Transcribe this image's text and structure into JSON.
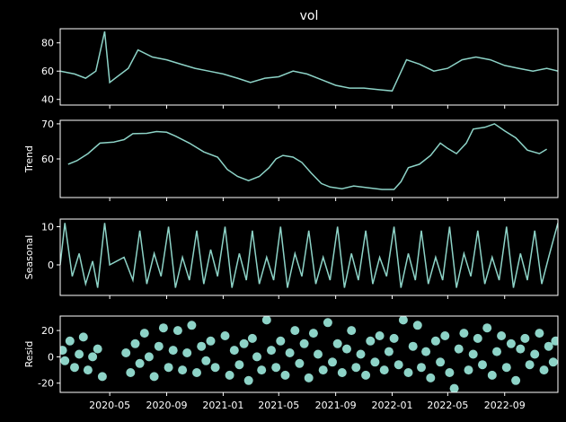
{
  "chart_data": {
    "type": "line",
    "title": "vol",
    "x_tick_labels": [
      "2020-05",
      "2020-09",
      "2021-01",
      "2021-05",
      "2021-09",
      "2022-01",
      "2022-05",
      "2022-09"
    ],
    "x_range": [
      "2020-01-15",
      "2022-12-25"
    ],
    "series_color": "#8dd3c7",
    "panels": [
      {
        "id": "observed",
        "ylabel": "",
        "ylim": [
          36,
          90
        ],
        "yticks": [
          40,
          60,
          80
        ],
        "kind": "line",
        "data_points": [
          [
            "2020-01-15",
            60
          ],
          [
            "2020-02-15",
            58
          ],
          [
            "2020-03-10",
            55
          ],
          [
            "2020-04-01",
            60
          ],
          [
            "2020-04-20",
            88
          ],
          [
            "2020-05-01",
            52
          ],
          [
            "2020-06-10",
            62
          ],
          [
            "2020-07-01",
            75
          ],
          [
            "2020-08-01",
            70
          ],
          [
            "2020-09-01",
            68
          ],
          [
            "2020-10-01",
            65
          ],
          [
            "2020-11-01",
            62
          ],
          [
            "2020-12-01",
            60
          ],
          [
            "2021-01-01",
            58
          ],
          [
            "2021-02-01",
            55
          ],
          [
            "2021-03-01",
            52
          ],
          [
            "2021-04-01",
            55
          ],
          [
            "2021-05-01",
            56
          ],
          [
            "2021-06-01",
            60
          ],
          [
            "2021-07-01",
            58
          ],
          [
            "2021-08-01",
            54
          ],
          [
            "2021-09-01",
            50
          ],
          [
            "2021-10-01",
            48
          ],
          [
            "2021-11-01",
            48
          ],
          [
            "2021-12-01",
            47
          ],
          [
            "2022-01-01",
            46
          ],
          [
            "2022-02-01",
            68
          ],
          [
            "2022-03-01",
            65
          ],
          [
            "2022-04-01",
            60
          ],
          [
            "2022-05-01",
            62
          ],
          [
            "2022-06-01",
            68
          ],
          [
            "2022-07-01",
            70
          ],
          [
            "2022-08-01",
            68
          ],
          [
            "2022-09-01",
            64
          ],
          [
            "2022-10-01",
            62
          ],
          [
            "2022-11-01",
            60
          ],
          [
            "2022-12-01",
            62
          ],
          [
            "2022-12-25",
            60
          ]
        ]
      },
      {
        "id": "trend",
        "ylabel": "Trend",
        "ylim": [
          49,
          71
        ],
        "yticks": [
          60,
          70
        ],
        "kind": "line",
        "data_points": [
          [
            "2020-02-01",
            58.5
          ],
          [
            "2020-02-20",
            59.5
          ],
          [
            "2020-03-15",
            61.5
          ],
          [
            "2020-04-10",
            64.5
          ],
          [
            "2020-05-10",
            64.8
          ],
          [
            "2020-06-01",
            65.5
          ],
          [
            "2020-06-20",
            67.2
          ],
          [
            "2020-07-20",
            67.3
          ],
          [
            "2020-08-10",
            67.8
          ],
          [
            "2020-09-01",
            67.6
          ],
          [
            "2020-09-20",
            66.5
          ],
          [
            "2020-10-20",
            64.5
          ],
          [
            "2020-11-20",
            62.0
          ],
          [
            "2020-12-20",
            60.5
          ],
          [
            "2021-01-10",
            57.0
          ],
          [
            "2021-02-01",
            55.0
          ],
          [
            "2021-02-25",
            53.8
          ],
          [
            "2021-03-20",
            55.0
          ],
          [
            "2021-04-10",
            57.5
          ],
          [
            "2021-04-25",
            60.0
          ],
          [
            "2021-05-10",
            61.0
          ],
          [
            "2021-06-01",
            60.5
          ],
          [
            "2021-06-20",
            59.0
          ],
          [
            "2021-07-10",
            56.0
          ],
          [
            "2021-08-01",
            53.0
          ],
          [
            "2021-08-20",
            52.0
          ],
          [
            "2021-09-15",
            51.5
          ],
          [
            "2021-10-10",
            52.3
          ],
          [
            "2021-11-10",
            51.8
          ],
          [
            "2021-12-10",
            51.3
          ],
          [
            "2022-01-05",
            51.3
          ],
          [
            "2022-01-20",
            53.5
          ],
          [
            "2022-02-05",
            57.5
          ],
          [
            "2022-03-01",
            58.5
          ],
          [
            "2022-03-25",
            61.0
          ],
          [
            "2022-04-15",
            64.5
          ],
          [
            "2022-05-01",
            63.0
          ],
          [
            "2022-05-20",
            61.5
          ],
          [
            "2022-06-10",
            64.5
          ],
          [
            "2022-06-25",
            68.5
          ],
          [
            "2022-07-20",
            69.0
          ],
          [
            "2022-08-10",
            70.0
          ],
          [
            "2022-09-01",
            68.0
          ],
          [
            "2022-09-25",
            66.0
          ],
          [
            "2022-10-20",
            62.5
          ],
          [
            "2022-11-15",
            61.5
          ],
          [
            "2022-12-01",
            62.8
          ]
        ]
      },
      {
        "id": "seasonal",
        "ylabel": "Seasonal",
        "ylim": [
          -8,
          12
        ],
        "yticks": [
          0,
          10
        ],
        "kind": "line",
        "data_points": [
          [
            "2020-01-15",
            0
          ],
          [
            "2020-01-25",
            11
          ],
          [
            "2020-02-10",
            -3
          ],
          [
            "2020-02-25",
            3
          ],
          [
            "2020-03-10",
            -5
          ],
          [
            "2020-03-25",
            1
          ],
          [
            "2020-04-05",
            -6
          ],
          [
            "2020-04-20",
            11
          ],
          [
            "2020-05-01",
            0
          ],
          [
            "2020-06-01",
            2
          ],
          [
            "2020-06-20",
            -4
          ],
          [
            "2020-07-05",
            9
          ],
          [
            "2020-07-20",
            -5
          ],
          [
            "2020-08-05",
            3
          ],
          [
            "2020-08-20",
            -3
          ],
          [
            "2020-09-05",
            10
          ],
          [
            "2020-09-20",
            -6
          ],
          [
            "2020-10-05",
            2
          ],
          [
            "2020-10-20",
            -4
          ],
          [
            "2020-11-05",
            9
          ],
          [
            "2020-11-20",
            -5
          ],
          [
            "2020-12-05",
            4
          ],
          [
            "2020-12-20",
            -3
          ],
          [
            "2021-01-05",
            10
          ],
          [
            "2021-01-20",
            -6
          ],
          [
            "2021-02-05",
            3
          ],
          [
            "2021-02-20",
            -4
          ],
          [
            "2021-03-05",
            9
          ],
          [
            "2021-03-20",
            -5
          ],
          [
            "2021-04-05",
            2
          ],
          [
            "2021-04-20",
            -4
          ],
          [
            "2021-05-05",
            10
          ],
          [
            "2021-05-20",
            -6
          ],
          [
            "2021-06-05",
            3
          ],
          [
            "2021-06-20",
            -3
          ],
          [
            "2021-07-05",
            9
          ],
          [
            "2021-07-20",
            -5
          ],
          [
            "2021-08-05",
            2
          ],
          [
            "2021-08-20",
            -4
          ],
          [
            "2021-09-05",
            10
          ],
          [
            "2021-09-20",
            -6
          ],
          [
            "2021-10-05",
            3
          ],
          [
            "2021-10-20",
            -4
          ],
          [
            "2021-11-05",
            9
          ],
          [
            "2021-11-20",
            -5
          ],
          [
            "2021-12-05",
            2
          ],
          [
            "2021-12-20",
            -3
          ],
          [
            "2022-01-05",
            10
          ],
          [
            "2022-01-20",
            -6
          ],
          [
            "2022-02-05",
            3
          ],
          [
            "2022-02-20",
            -4
          ],
          [
            "2022-03-05",
            9
          ],
          [
            "2022-03-20",
            -5
          ],
          [
            "2022-04-05",
            2
          ],
          [
            "2022-04-20",
            -4
          ],
          [
            "2022-05-05",
            10
          ],
          [
            "2022-05-20",
            -6
          ],
          [
            "2022-06-05",
            3
          ],
          [
            "2022-06-20",
            -3
          ],
          [
            "2022-07-05",
            9
          ],
          [
            "2022-07-20",
            -5
          ],
          [
            "2022-08-05",
            2
          ],
          [
            "2022-08-20",
            -4
          ],
          [
            "2022-09-05",
            10
          ],
          [
            "2022-09-20",
            -6
          ],
          [
            "2022-10-05",
            3
          ],
          [
            "2022-10-20",
            -4
          ],
          [
            "2022-11-05",
            9
          ],
          [
            "2022-11-20",
            -5
          ],
          [
            "2022-12-05",
            2
          ],
          [
            "2022-12-25",
            11
          ]
        ]
      },
      {
        "id": "resid",
        "ylabel": "Resid",
        "ylim": [
          -27,
          31
        ],
        "yticks": [
          -20,
          0,
          20
        ],
        "kind": "scatter",
        "data_points": [
          [
            "2020-01-20",
            5
          ],
          [
            "2020-01-25",
            -3
          ],
          [
            "2020-02-05",
            12
          ],
          [
            "2020-02-15",
            -8
          ],
          [
            "2020-02-25",
            2
          ],
          [
            "2020-03-05",
            15
          ],
          [
            "2020-03-15",
            -10
          ],
          [
            "2020-03-25",
            0
          ],
          [
            "2020-04-05",
            6
          ],
          [
            "2020-04-15",
            -15
          ],
          [
            "2020-06-05",
            3
          ],
          [
            "2020-06-15",
            -12
          ],
          [
            "2020-06-25",
            10
          ],
          [
            "2020-07-05",
            -5
          ],
          [
            "2020-07-15",
            18
          ],
          [
            "2020-07-25",
            0
          ],
          [
            "2020-08-05",
            -15
          ],
          [
            "2020-08-15",
            8
          ],
          [
            "2020-08-25",
            22
          ],
          [
            "2020-09-05",
            -8
          ],
          [
            "2020-09-15",
            5
          ],
          [
            "2020-09-25",
            20
          ],
          [
            "2020-10-05",
            -10
          ],
          [
            "2020-10-15",
            3
          ],
          [
            "2020-10-25",
            24
          ],
          [
            "2020-11-05",
            -12
          ],
          [
            "2020-11-15",
            8
          ],
          [
            "2020-11-25",
            -3
          ],
          [
            "2020-12-05",
            12
          ],
          [
            "2020-12-15",
            -8
          ],
          [
            "2021-01-05",
            16
          ],
          [
            "2021-01-15",
            -14
          ],
          [
            "2021-01-25",
            5
          ],
          [
            "2021-02-05",
            -6
          ],
          [
            "2021-02-15",
            10
          ],
          [
            "2021-02-25",
            -18
          ],
          [
            "2021-03-05",
            14
          ],
          [
            "2021-03-15",
            0
          ],
          [
            "2021-03-25",
            -10
          ],
          [
            "2021-04-05",
            28
          ],
          [
            "2021-04-15",
            5
          ],
          [
            "2021-04-25",
            -8
          ],
          [
            "2021-05-05",
            12
          ],
          [
            "2021-05-15",
            -14
          ],
          [
            "2021-05-25",
            3
          ],
          [
            "2021-06-05",
            20
          ],
          [
            "2021-06-15",
            -5
          ],
          [
            "2021-06-25",
            10
          ],
          [
            "2021-07-05",
            -16
          ],
          [
            "2021-07-15",
            18
          ],
          [
            "2021-07-25",
            2
          ],
          [
            "2021-08-05",
            -10
          ],
          [
            "2021-08-15",
            26
          ],
          [
            "2021-08-25",
            -4
          ],
          [
            "2021-09-05",
            10
          ],
          [
            "2021-09-15",
            -12
          ],
          [
            "2021-09-25",
            6
          ],
          [
            "2021-10-05",
            20
          ],
          [
            "2021-10-15",
            -8
          ],
          [
            "2021-10-25",
            2
          ],
          [
            "2021-11-05",
            -14
          ],
          [
            "2021-11-15",
            12
          ],
          [
            "2021-11-25",
            -4
          ],
          [
            "2021-12-05",
            16
          ],
          [
            "2021-12-15",
            -10
          ],
          [
            "2021-12-25",
            4
          ],
          [
            "2022-01-05",
            14
          ],
          [
            "2022-01-15",
            -6
          ],
          [
            "2022-01-25",
            28
          ],
          [
            "2022-02-05",
            -12
          ],
          [
            "2022-02-15",
            8
          ],
          [
            "2022-02-25",
            24
          ],
          [
            "2022-03-05",
            -8
          ],
          [
            "2022-03-15",
            4
          ],
          [
            "2022-03-25",
            -16
          ],
          [
            "2022-04-05",
            12
          ],
          [
            "2022-04-15",
            -4
          ],
          [
            "2022-04-25",
            16
          ],
          [
            "2022-05-05",
            -12
          ],
          [
            "2022-05-15",
            -24
          ],
          [
            "2022-05-25",
            6
          ],
          [
            "2022-06-05",
            18
          ],
          [
            "2022-06-15",
            -10
          ],
          [
            "2022-06-25",
            2
          ],
          [
            "2022-07-05",
            14
          ],
          [
            "2022-07-15",
            -6
          ],
          [
            "2022-07-25",
            22
          ],
          [
            "2022-08-05",
            -14
          ],
          [
            "2022-08-15",
            4
          ],
          [
            "2022-08-25",
            16
          ],
          [
            "2022-09-05",
            -8
          ],
          [
            "2022-09-15",
            10
          ],
          [
            "2022-09-25",
            -18
          ],
          [
            "2022-10-05",
            6
          ],
          [
            "2022-10-15",
            14
          ],
          [
            "2022-10-25",
            -6
          ],
          [
            "2022-11-05",
            2
          ],
          [
            "2022-11-15",
            18
          ],
          [
            "2022-11-25",
            -10
          ],
          [
            "2022-12-05",
            8
          ],
          [
            "2022-12-15",
            -4
          ],
          [
            "2022-12-20",
            12
          ]
        ]
      }
    ]
  }
}
